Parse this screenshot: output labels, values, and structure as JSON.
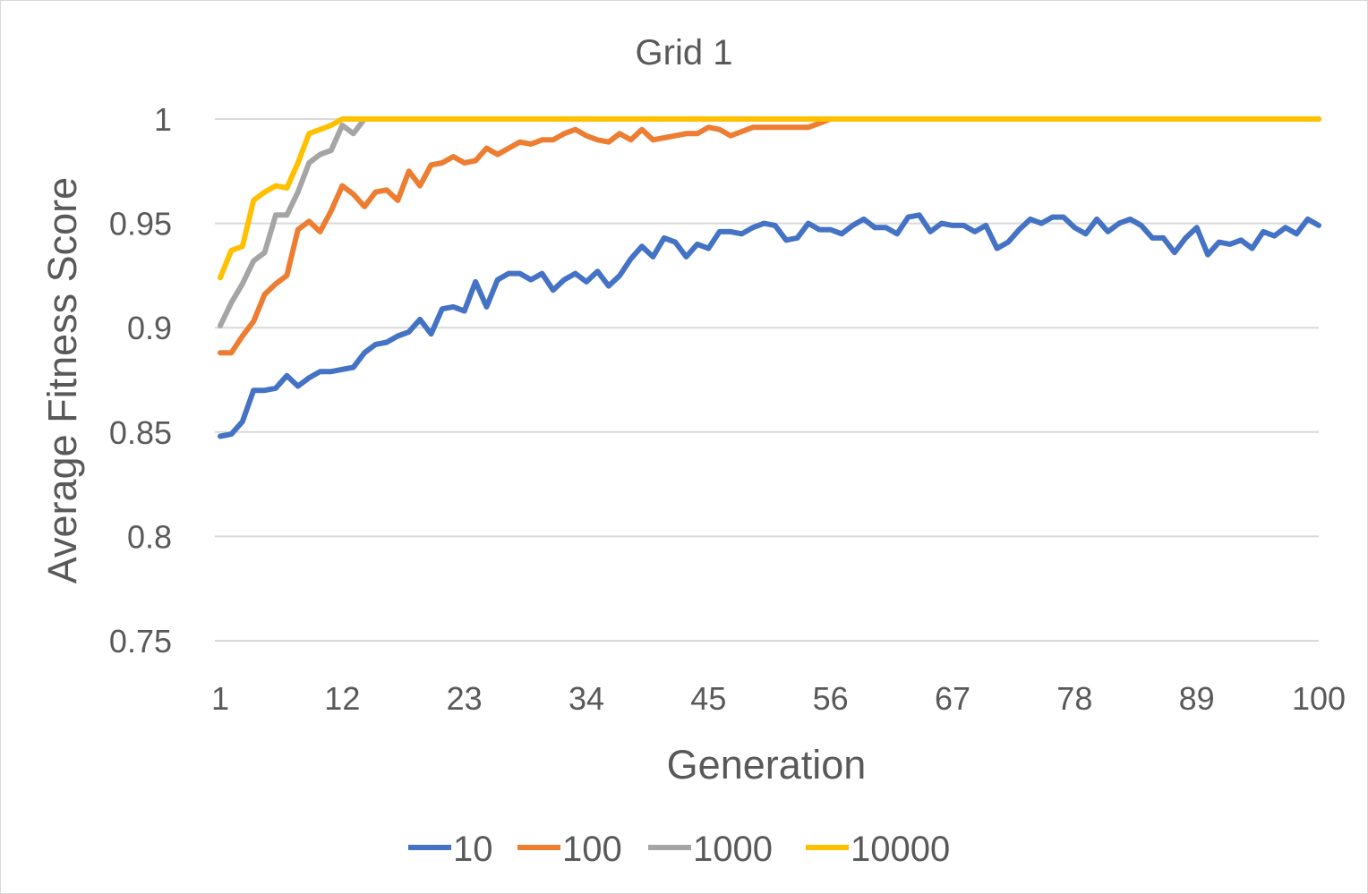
{
  "chart_data": {
    "type": "line",
    "title": "Grid 1",
    "xlabel": "Generation",
    "ylabel": "Average Fitness Score",
    "xlim": [
      1,
      100
    ],
    "ylim": [
      0.75,
      1
    ],
    "x_tick_labels": [
      "1",
      "12",
      "23",
      "34",
      "45",
      "56",
      "67",
      "78",
      "89",
      "100"
    ],
    "y_tick_labels": [
      "0.75",
      "0.8",
      "0.85",
      "0.9",
      "0.95",
      "1"
    ],
    "grid": true,
    "legend_position": "bottom",
    "x": [
      1,
      2,
      3,
      4,
      5,
      6,
      7,
      8,
      9,
      10,
      11,
      12,
      13,
      14,
      15,
      16,
      17,
      18,
      19,
      20,
      21,
      22,
      23,
      24,
      25,
      26,
      27,
      28,
      29,
      30,
      31,
      32,
      33,
      34,
      35,
      36,
      37,
      38,
      39,
      40,
      41,
      42,
      43,
      44,
      45,
      46,
      47,
      48,
      49,
      50,
      51,
      52,
      53,
      54,
      55,
      56,
      57,
      58,
      59,
      60,
      61,
      62,
      63,
      64,
      65,
      66,
      67,
      68,
      69,
      70,
      71,
      72,
      73,
      74,
      75,
      76,
      77,
      78,
      79,
      80,
      81,
      82,
      83,
      84,
      85,
      86,
      87,
      88,
      89,
      90,
      91,
      92,
      93,
      94,
      95,
      96,
      97,
      98,
      99,
      100
    ],
    "series": [
      {
        "name": "10",
        "color": "#4472C4",
        "values": [
          0.848,
          0.849,
          0.855,
          0.87,
          0.87,
          0.871,
          0.877,
          0.872,
          0.876,
          0.879,
          0.879,
          0.88,
          0.881,
          0.888,
          0.892,
          0.893,
          0.896,
          0.898,
          0.904,
          0.897,
          0.909,
          0.91,
          0.908,
          0.922,
          0.91,
          0.923,
          0.926,
          0.926,
          0.923,
          0.926,
          0.918,
          0.923,
          0.926,
          0.922,
          0.927,
          0.92,
          0.925,
          0.933,
          0.939,
          0.934,
          0.943,
          0.941,
          0.934,
          0.94,
          0.938,
          0.946,
          0.946,
          0.945,
          0.948,
          0.95,
          0.949,
          0.942,
          0.943,
          0.95,
          0.947,
          0.947,
          0.945,
          0.949,
          0.952,
          0.948,
          0.948,
          0.945,
          0.953,
          0.954,
          0.946,
          0.95,
          0.949,
          0.949,
          0.946,
          0.949,
          0.938,
          0.941,
          0.947,
          0.952,
          0.95,
          0.953,
          0.953,
          0.948,
          0.945,
          0.952,
          0.946,
          0.95,
          0.952,
          0.949,
          0.943,
          0.943,
          0.936,
          0.943,
          0.948,
          0.935,
          0.941,
          0.94,
          0.942,
          0.938,
          0.946,
          0.944,
          0.948,
          0.945,
          0.952,
          0.949
        ]
      },
      {
        "name": "100",
        "color": "#ED7D31",
        "values": [
          0.888,
          0.888,
          0.896,
          0.903,
          0.916,
          0.921,
          0.925,
          0.947,
          0.951,
          0.946,
          0.956,
          0.968,
          0.964,
          0.958,
          0.965,
          0.966,
          0.961,
          0.975,
          0.968,
          0.978,
          0.979,
          0.982,
          0.979,
          0.98,
          0.986,
          0.983,
          0.986,
          0.989,
          0.988,
          0.99,
          0.99,
          0.993,
          0.995,
          0.992,
          0.99,
          0.989,
          0.993,
          0.99,
          0.995,
          0.99,
          0.991,
          0.992,
          0.993,
          0.993,
          0.996,
          0.995,
          0.992,
          0.994,
          0.996,
          0.996,
          0.996,
          0.996,
          0.996,
          0.996,
          0.998,
          1,
          1,
          1,
          1,
          1,
          1,
          1,
          1,
          1,
          1,
          1,
          1,
          1,
          1,
          1,
          1,
          1,
          1,
          1,
          1,
          1,
          1,
          1,
          1,
          1,
          1,
          1,
          1,
          1,
          1,
          1,
          1,
          1,
          1,
          1,
          1,
          1,
          1,
          1,
          1,
          1,
          1,
          1,
          1,
          1
        ]
      },
      {
        "name": "1000",
        "color": "#A5A5A5",
        "values": [
          0.901,
          0.912,
          0.921,
          0.932,
          0.936,
          0.954,
          0.954,
          0.965,
          0.979,
          0.983,
          0.985,
          0.997,
          0.993,
          1,
          1,
          1,
          1,
          1,
          1,
          1,
          1,
          1,
          1,
          1,
          1,
          1,
          1,
          1,
          1,
          1,
          1,
          1,
          1,
          1,
          1,
          1,
          1,
          1,
          1,
          1,
          1,
          1,
          1,
          1,
          1,
          1,
          1,
          1,
          1,
          1,
          1,
          1,
          1,
          1,
          1,
          1,
          1,
          1,
          1,
          1,
          1,
          1,
          1,
          1,
          1,
          1,
          1,
          1,
          1,
          1,
          1,
          1,
          1,
          1,
          1,
          1,
          1,
          1,
          1,
          1,
          1,
          1,
          1,
          1,
          1,
          1,
          1,
          1,
          1,
          1,
          1,
          1,
          1,
          1,
          1,
          1,
          1,
          1,
          1,
          1
        ]
      },
      {
        "name": "10000",
        "color": "#FFC000",
        "values": [
          0.924,
          0.937,
          0.939,
          0.961,
          0.965,
          0.968,
          0.967,
          0.979,
          0.993,
          0.995,
          0.997,
          1,
          1,
          1,
          1,
          1,
          1,
          1,
          1,
          1,
          1,
          1,
          1,
          1,
          1,
          1,
          1,
          1,
          1,
          1,
          1,
          1,
          1,
          1,
          1,
          1,
          1,
          1,
          1,
          1,
          1,
          1,
          1,
          1,
          1,
          1,
          1,
          1,
          1,
          1,
          1,
          1,
          1,
          1,
          1,
          1,
          1,
          1,
          1,
          1,
          1,
          1,
          1,
          1,
          1,
          1,
          1,
          1,
          1,
          1,
          1,
          1,
          1,
          1,
          1,
          1,
          1,
          1,
          1,
          1,
          1,
          1,
          1,
          1,
          1,
          1,
          1,
          1,
          1,
          1,
          1,
          1,
          1,
          1,
          1,
          1,
          1,
          1,
          1,
          1
        ]
      }
    ]
  }
}
